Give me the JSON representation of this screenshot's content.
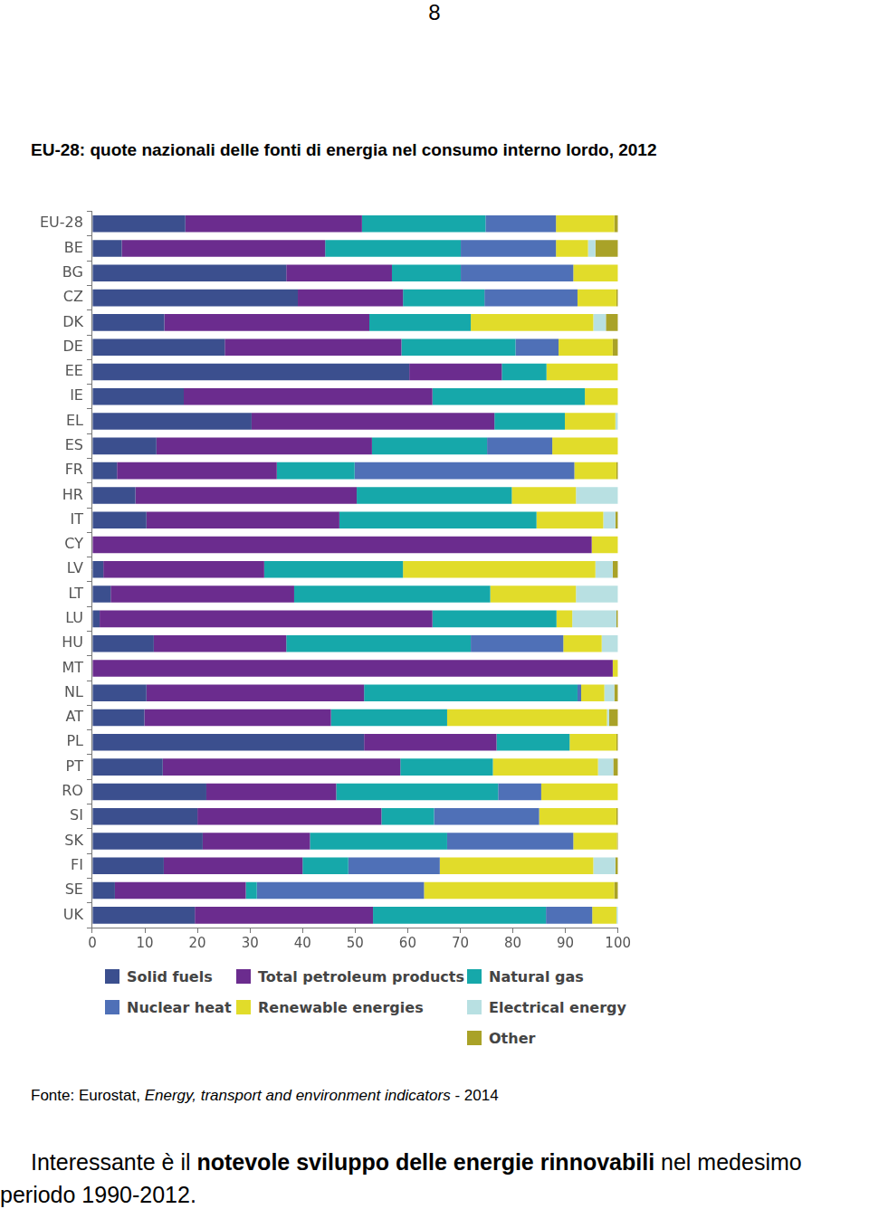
{
  "page_number": "8",
  "title": "EU-28: quote nazionali delle fonti di energia nel consumo interno lordo, 2012",
  "chart_data": {
    "type": "bar",
    "orientation": "horizontal",
    "stacked": true,
    "grid": false,
    "legend": "bottom",
    "categories": [
      "EU-28",
      "BE",
      "BG",
      "CZ",
      "DK",
      "DE",
      "EE",
      "IE",
      "EL",
      "ES",
      "FR",
      "HR",
      "IT",
      "CY",
      "LV",
      "LT",
      "LU",
      "HU",
      "MT",
      "NL",
      "AT",
      "PL",
      "PT",
      "RO",
      "SI",
      "SK",
      "FI",
      "SE",
      "UK"
    ],
    "xlim": [
      0,
      100
    ],
    "xticks": [
      0,
      10,
      20,
      30,
      40,
      50,
      60,
      70,
      80,
      90,
      100
    ],
    "series": [
      {
        "name": "Solid fuels",
        "color": "#3b4f8e",
        "values": [
          17.7,
          5.6,
          36.9,
          39.1,
          13.7,
          25.2,
          60.3,
          17.4,
          30.3,
          12.2,
          4.7,
          8.2,
          10.3,
          0,
          2.1,
          3.5,
          1.4,
          11.7,
          0,
          10.3,
          9.9,
          51.7,
          13.4,
          21.7,
          20.0,
          21.0,
          13.6,
          4.3,
          19.5
        ]
      },
      {
        "name": "Total petroleum products",
        "color": "#6b2c8e",
        "values": [
          33.6,
          38.7,
          20.1,
          20.0,
          39.0,
          33.6,
          17.6,
          47.3,
          46.2,
          41.0,
          30.4,
          42.1,
          36.7,
          95.0,
          30.6,
          34.9,
          63.3,
          25.2,
          99.0,
          41.4,
          35.5,
          25.2,
          45.2,
          24.7,
          35.0,
          20.4,
          26.4,
          24.9,
          33.9
        ]
      },
      {
        "name": "Natural gas",
        "color": "#16a8aa",
        "values": [
          23.5,
          25.8,
          13.1,
          15.5,
          19.3,
          21.7,
          8.5,
          29.0,
          13.4,
          21.9,
          14.8,
          29.5,
          37.5,
          0,
          26.4,
          37.3,
          23.6,
          35.1,
          0,
          40.6,
          22.1,
          13.9,
          17.6,
          30.8,
          10.0,
          26.1,
          8.7,
          2.1,
          32.9
        ]
      },
      {
        "name": "Nuclear heat",
        "color": "#4f70b7",
        "values": [
          13.4,
          18.1,
          21.4,
          17.7,
          0,
          8.2,
          0,
          0,
          0,
          12.4,
          41.8,
          0,
          0,
          0,
          0,
          0,
          0,
          17.6,
          0,
          0.7,
          0,
          0,
          0,
          8.2,
          20.0,
          24.0,
          17.4,
          31.8,
          8.8
        ]
      },
      {
        "name": "Renewable energies",
        "color": "#e1dc2a",
        "values": [
          11.1,
          6.1,
          8.5,
          7.4,
          23.3,
          10.3,
          13.6,
          6.3,
          9.6,
          12.5,
          8.0,
          12.2,
          12.7,
          5.0,
          36.6,
          16.3,
          3.0,
          7.3,
          1.0,
          4.4,
          30.4,
          8.9,
          20.0,
          14.6,
          14.7,
          8.3,
          29.2,
          36.2,
          4.6
        ]
      },
      {
        "name": "Electrical energy",
        "color": "#b8e0e2",
        "values": [
          0,
          1.4,
          0,
          0,
          2.4,
          0,
          0,
          0,
          0.5,
          0,
          0,
          8.0,
          2.3,
          0,
          3.3,
          8.0,
          8.4,
          3.1,
          0,
          1.9,
          0.4,
          0,
          2.9,
          0,
          0,
          0,
          4.2,
          0,
          0.3
        ]
      },
      {
        "name": "Other",
        "color": "#a9a228",
        "values": [
          0.7,
          4.3,
          0,
          0.3,
          2.3,
          1.0,
          0,
          0,
          0,
          0,
          0.3,
          0,
          0.5,
          0,
          1.0,
          0,
          0.3,
          0,
          0,
          0.7,
          1.7,
          0.3,
          0.9,
          0,
          0.3,
          0.2,
          0.5,
          0.7,
          0
        ]
      }
    ]
  },
  "source": {
    "segments": [
      {
        "text": "Fonte: Eurostat, ",
        "style": "normal"
      },
      {
        "text": "Energy, transport and environment indicators",
        "style": "italic"
      },
      {
        "text": " - 2014",
        "style": "normal"
      }
    ]
  },
  "body": {
    "segments": [
      {
        "text": "Interessante è il ",
        "style": "normal"
      },
      {
        "text": "notevole sviluppo delle energie rinnovabili",
        "style": "bold"
      },
      {
        "text": " nel medesimo periodo 1990-2012.",
        "style": "normal"
      }
    ]
  }
}
